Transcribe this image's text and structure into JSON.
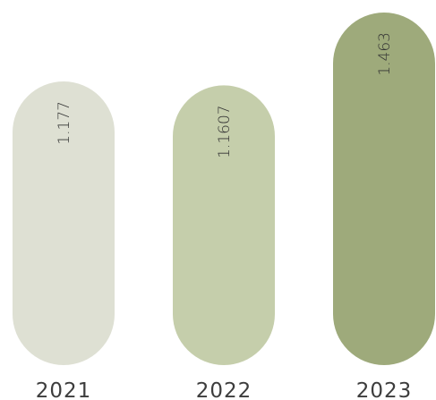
{
  "chart_data": {
    "type": "bar",
    "categories": [
      "2021",
      "2022",
      "2023"
    ],
    "values": [
      1.177,
      1.1607,
      1.463
    ],
    "value_labels": [
      "1.177",
      "1.1607",
      "1.463"
    ],
    "colors": [
      "#dee0d3",
      "#c5ceab",
      "#9eaa7b"
    ],
    "title": "",
    "xlabel": "",
    "ylabel": "",
    "grid": false,
    "legend": "none"
  }
}
